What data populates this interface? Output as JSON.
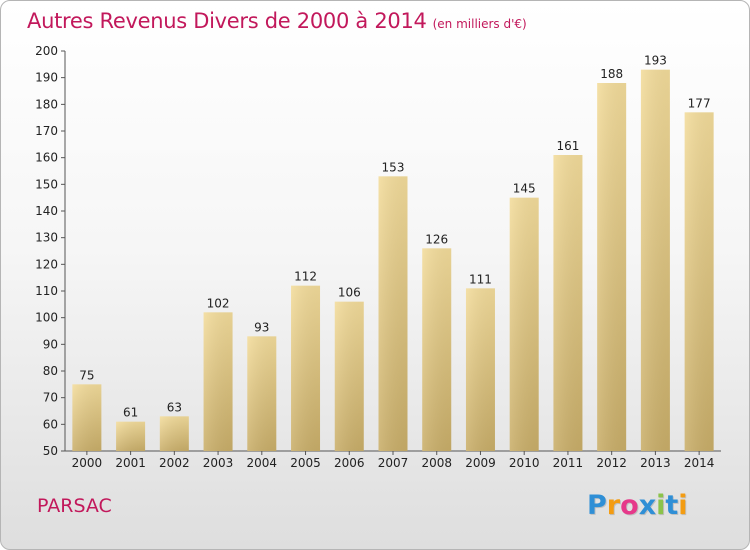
{
  "chart_data": {
    "type": "bar",
    "title": "Autres Revenus Divers de 2000 à 2014",
    "subtitle": "(en milliers d'€)",
    "categories": [
      "2000",
      "2001",
      "2002",
      "2003",
      "2004",
      "2005",
      "2006",
      "2007",
      "2008",
      "2009",
      "2010",
      "2011",
      "2012",
      "2013",
      "2014"
    ],
    "values": [
      75,
      61,
      63,
      102,
      93,
      112,
      106,
      153,
      126,
      111,
      145,
      161,
      188,
      193,
      177
    ],
    "ylim": [
      50,
      200
    ],
    "yticks": [
      50,
      60,
      70,
      80,
      90,
      100,
      110,
      120,
      130,
      140,
      150,
      160,
      170,
      180,
      190,
      200
    ],
    "grid": false,
    "colors": {
      "bar_top": "#f3dc9b",
      "bar_bottom": "#c9ae69",
      "title": "#c2185b"
    }
  },
  "footer": {
    "place": "PARSAC"
  },
  "logo": {
    "text": "Proxiti",
    "letters": [
      "P",
      "r",
      "o",
      "x",
      "i",
      "t",
      "i"
    ],
    "colors": [
      "#2f8fd6",
      "#f39c12",
      "#e6398a",
      "#2f8fd6",
      "#8bc34a",
      "#2f8fd6",
      "#f39c12"
    ]
  }
}
